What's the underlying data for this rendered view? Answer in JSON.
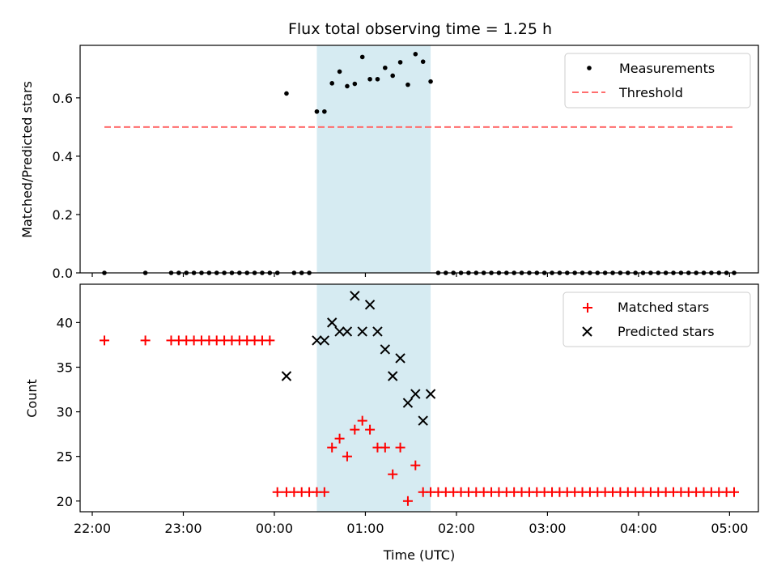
{
  "chart_data": [
    {
      "type": "scatter",
      "title": "Flux total observing time = 1.25 h",
      "xlabel": "",
      "ylabel": "Matched/Predicted stars",
      "xlim": [
        "21:52",
        "05:19"
      ],
      "ylim": [
        0,
        0.78
      ],
      "yticks": [
        0.0,
        0.2,
        0.4,
        0.6
      ],
      "ytick_labels": [
        "0.0",
        "0.2",
        "0.4",
        "0.6"
      ],
      "shaded_region": {
        "x_start": "00:28",
        "x_end": "01:43",
        "color": "#add8e6"
      },
      "legend": {
        "location": "top-right"
      },
      "series": [
        {
          "name": "Measurements",
          "marker": "dot",
          "color": "#000000",
          "x": [
            "22:08",
            "22:35",
            "22:52",
            "22:57",
            "23:02",
            "23:07",
            "23:12",
            "23:17",
            "23:22",
            "23:27",
            "23:32",
            "23:37",
            "23:42",
            "23:47",
            "23:52",
            "23:57",
            "00:02",
            "00:08",
            "00:13",
            "00:18",
            "00:23",
            "00:28",
            "00:33",
            "00:38",
            "00:43",
            "00:48",
            "00:53",
            "00:58",
            "01:03",
            "01:08",
            "01:13",
            "01:18",
            "01:23",
            "01:28",
            "01:33",
            "01:38",
            "01:43",
            "01:48",
            "01:53",
            "01:58",
            "02:03",
            "02:08",
            "02:13",
            "02:18",
            "02:23",
            "02:28",
            "02:33",
            "02:38",
            "02:43",
            "02:48",
            "02:53",
            "02:58",
            "03:03",
            "03:08",
            "03:13",
            "03:18",
            "03:23",
            "03:28",
            "03:33",
            "03:38",
            "03:43",
            "03:48",
            "03:53",
            "03:58",
            "04:03",
            "04:08",
            "04:13",
            "04:18",
            "04:23",
            "04:28",
            "04:33",
            "04:38",
            "04:43",
            "04:48",
            "04:53",
            "04:58",
            "05:03"
          ],
          "y": [
            0,
            0,
            0,
            0,
            0,
            0,
            0,
            0,
            0,
            0,
            0,
            0,
            0,
            0,
            0,
            0,
            0,
            0.615,
            0,
            0,
            0,
            0.553,
            0.553,
            0.65,
            0.69,
            0.64,
            0.648,
            0.74,
            0.664,
            0.664,
            0.703,
            0.676,
            0.722,
            0.645,
            0.75,
            0.724,
            0.656,
            0,
            0,
            0,
            0,
            0,
            0,
            0,
            0,
            0,
            0,
            0,
            0,
            0,
            0,
            0,
            0,
            0,
            0,
            0,
            0,
            0,
            0,
            0,
            0,
            0,
            0,
            0,
            0,
            0,
            0,
            0,
            0,
            0,
            0,
            0,
            0,
            0,
            0,
            0,
            0
          ]
        },
        {
          "name": "Threshold",
          "marker": "dashed-line",
          "color": "#ff6e6e",
          "x": [
            "22:08",
            "05:02"
          ],
          "y": [
            0.5,
            0.5
          ]
        }
      ]
    },
    {
      "type": "scatter",
      "title": "",
      "xlabel": "Time (UTC)",
      "ylabel": "Count",
      "xlim": [
        "21:52",
        "05:19"
      ],
      "ylim": [
        18.8,
        44.3
      ],
      "yticks": [
        20,
        25,
        30,
        35,
        40
      ],
      "xticks": [
        "22:00",
        "23:00",
        "00:00",
        "01:00",
        "02:00",
        "03:00",
        "04:00",
        "05:00"
      ],
      "shaded_region": {
        "x_start": "00:28",
        "x_end": "01:43",
        "color": "#add8e6"
      },
      "legend": {
        "location": "top-right"
      },
      "series": [
        {
          "name": "Matched stars",
          "marker": "plus",
          "color": "#ff0000",
          "x": [
            "22:08",
            "22:35",
            "22:52",
            "22:57",
            "23:02",
            "23:07",
            "23:12",
            "23:17",
            "23:22",
            "23:27",
            "23:32",
            "23:37",
            "23:42",
            "23:47",
            "23:52",
            "23:57",
            "00:02",
            "00:08",
            "00:13",
            "00:18",
            "00:23",
            "00:28",
            "00:33",
            "00:38",
            "00:43",
            "00:48",
            "00:53",
            "00:58",
            "01:03",
            "01:08",
            "01:13",
            "01:18",
            "01:23",
            "01:28",
            "01:33",
            "01:38",
            "01:43",
            "01:48",
            "01:53",
            "01:58",
            "02:03",
            "02:08",
            "02:13",
            "02:18",
            "02:23",
            "02:28",
            "02:33",
            "02:38",
            "02:43",
            "02:48",
            "02:53",
            "02:58",
            "03:03",
            "03:08",
            "03:13",
            "03:18",
            "03:23",
            "03:28",
            "03:33",
            "03:38",
            "03:43",
            "03:48",
            "03:53",
            "03:58",
            "04:03",
            "04:08",
            "04:13",
            "04:18",
            "04:23",
            "04:28",
            "04:33",
            "04:38",
            "04:43",
            "04:48",
            "04:53",
            "04:58",
            "05:03"
          ],
          "y": [
            38,
            38,
            38,
            38,
            38,
            38,
            38,
            38,
            38,
            38,
            38,
            38,
            38,
            38,
            38,
            38,
            21,
            21,
            21,
            21,
            21,
            21,
            21,
            26,
            27,
            25,
            28,
            29,
            28,
            26,
            26,
            23,
            26,
            20,
            24,
            21,
            21,
            21,
            21,
            21,
            21,
            21,
            21,
            21,
            21,
            21,
            21,
            21,
            21,
            21,
            21,
            21,
            21,
            21,
            21,
            21,
            21,
            21,
            21,
            21,
            21,
            21,
            21,
            21,
            21,
            21,
            21,
            21,
            21,
            21,
            21,
            21,
            21,
            21,
            21,
            21,
            21
          ]
        },
        {
          "name": "Predicted stars",
          "marker": "x",
          "color": "#000000",
          "x": [
            "00:08",
            "00:28",
            "00:33",
            "00:38",
            "00:43",
            "00:48",
            "00:53",
            "00:58",
            "01:03",
            "01:08",
            "01:13",
            "01:18",
            "01:23",
            "01:28",
            "01:33",
            "01:38",
            "01:43"
          ],
          "y": [
            34,
            38,
            38,
            40,
            39,
            39,
            43,
            39,
            42,
            39,
            37,
            34,
            36,
            31,
            32,
            29,
            32
          ]
        }
      ]
    }
  ]
}
